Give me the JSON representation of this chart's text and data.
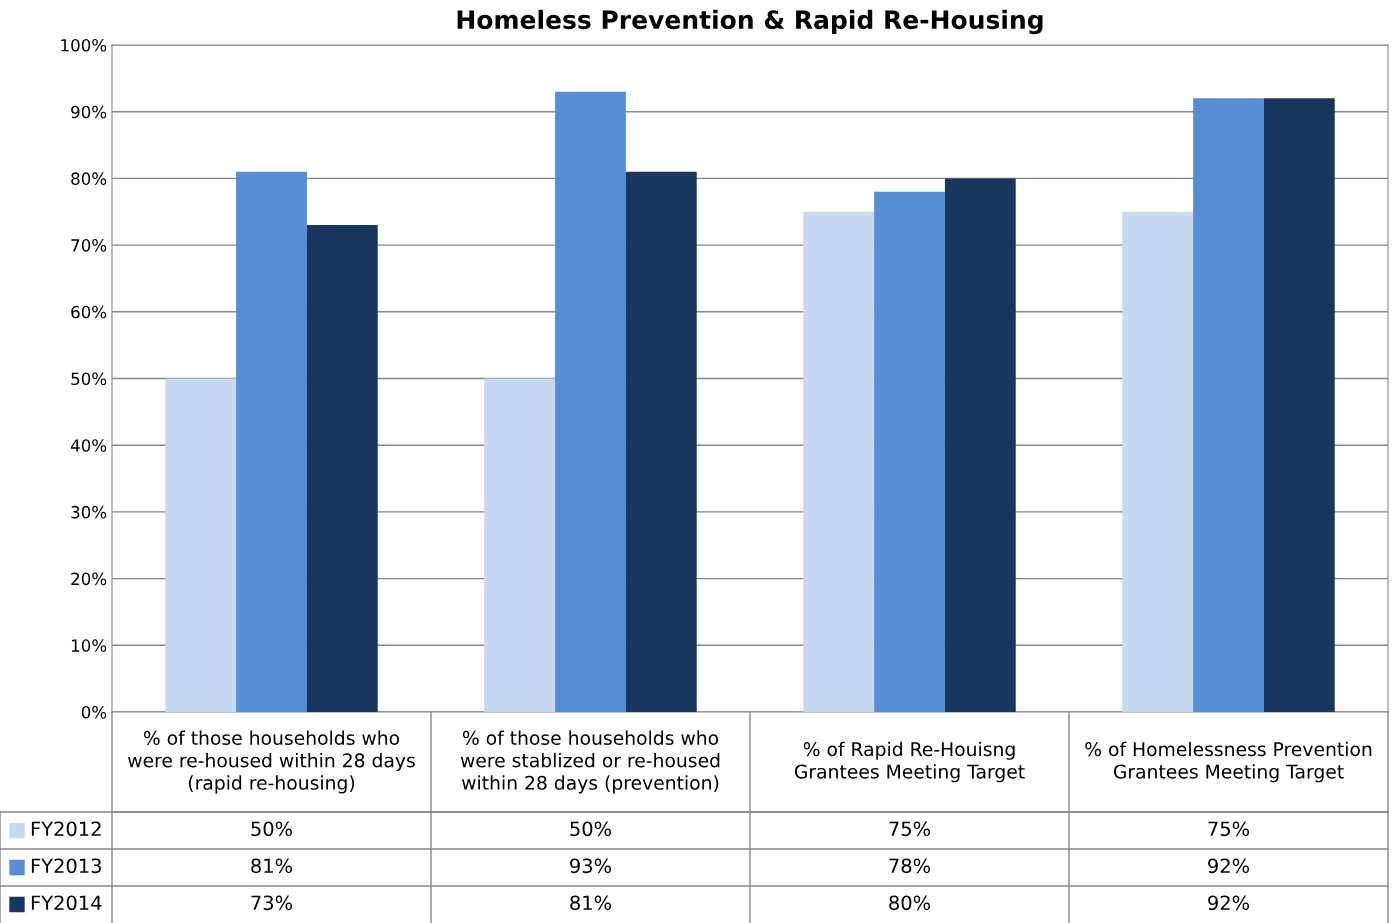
{
  "chart_data": {
    "type": "bar",
    "title": "Homeless Prevention & Rapid Re-Housing",
    "categories": [
      "% of those households who were re-housed within 28 days (rapid re-housing)",
      "% of those households who were stablized or re-housed within 28 days (prevention)",
      "% of Rapid Re-Houisng Grantees Meeting Target",
      "% of Homelessness Prevention Grantees Meeting Target"
    ],
    "series": [
      {
        "name": "FY2012",
        "color": "#c6d9f1",
        "values": [
          50,
          50,
          75,
          75
        ],
        "value_labels": [
          "50%",
          "50%",
          "75%",
          "75%"
        ]
      },
      {
        "name": "FY2013",
        "color": "#558ed5",
        "values": [
          81,
          93,
          78,
          92
        ],
        "value_labels": [
          "81%",
          "93%",
          "78%",
          "92%"
        ]
      },
      {
        "name": "FY2014",
        "color": "#17375e",
        "values": [
          73,
          81,
          80,
          92
        ],
        "value_labels": [
          "73%",
          "81%",
          "80%",
          "92%"
        ]
      }
    ],
    "ylim": [
      0,
      100
    ],
    "yticks": [
      {
        "value": 0,
        "label": "0%"
      },
      {
        "value": 10,
        "label": "10%"
      },
      {
        "value": 20,
        "label": "20%"
      },
      {
        "value": 30,
        "label": "30%"
      },
      {
        "value": 40,
        "label": "40%"
      },
      {
        "value": 50,
        "label": "50%"
      },
      {
        "value": 60,
        "label": "60%"
      },
      {
        "value": 70,
        "label": "70%"
      },
      {
        "value": 80,
        "label": "80%"
      },
      {
        "value": 90,
        "label": "90%"
      },
      {
        "value": 100,
        "label": "100%"
      }
    ],
    "grid": "y",
    "legend": "bottom left"
  }
}
